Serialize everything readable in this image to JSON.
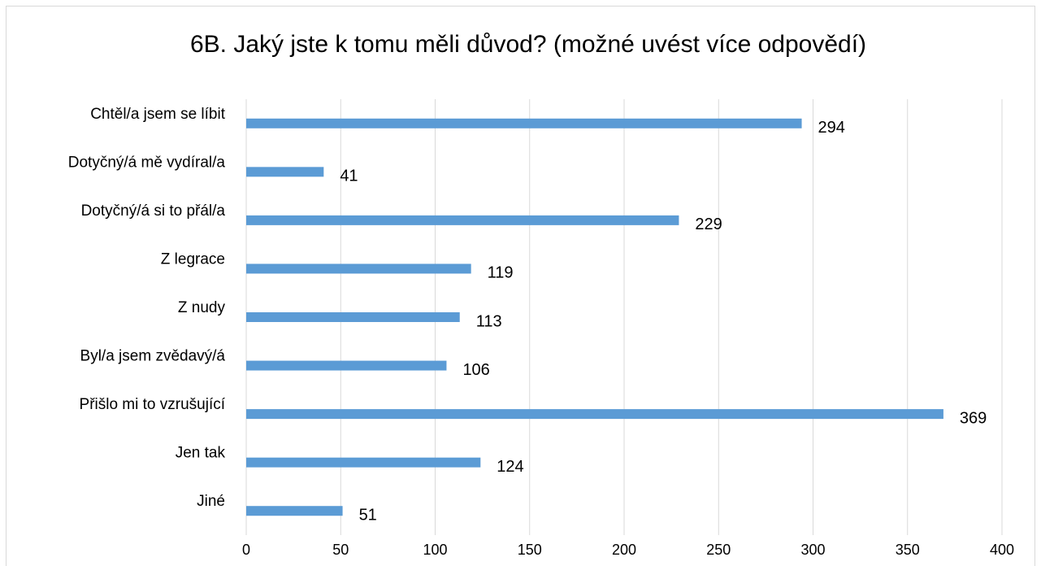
{
  "chart_data": {
    "type": "bar",
    "orientation": "horizontal",
    "title": "6B. Jaký jste k tomu měli důvod? (možné uvést více odpovědí)",
    "categories": [
      "Chtěl/a jsem se líbit",
      "Dotyčný/á mě vydíral/a",
      "Dotyčný/á si to přál/a",
      "Z legrace",
      "Z nudy",
      "Byl/a jsem zvědavý/á",
      "Přišlo mi to vzrušující",
      "Jen tak",
      "Jiné"
    ],
    "values": [
      294,
      41,
      229,
      119,
      113,
      106,
      369,
      124,
      51
    ],
    "color": "#5b9bd5",
    "xlim": [
      0,
      400
    ],
    "xticks": [
      0,
      50,
      100,
      150,
      200,
      250,
      300,
      350,
      400
    ],
    "grid": true
  }
}
